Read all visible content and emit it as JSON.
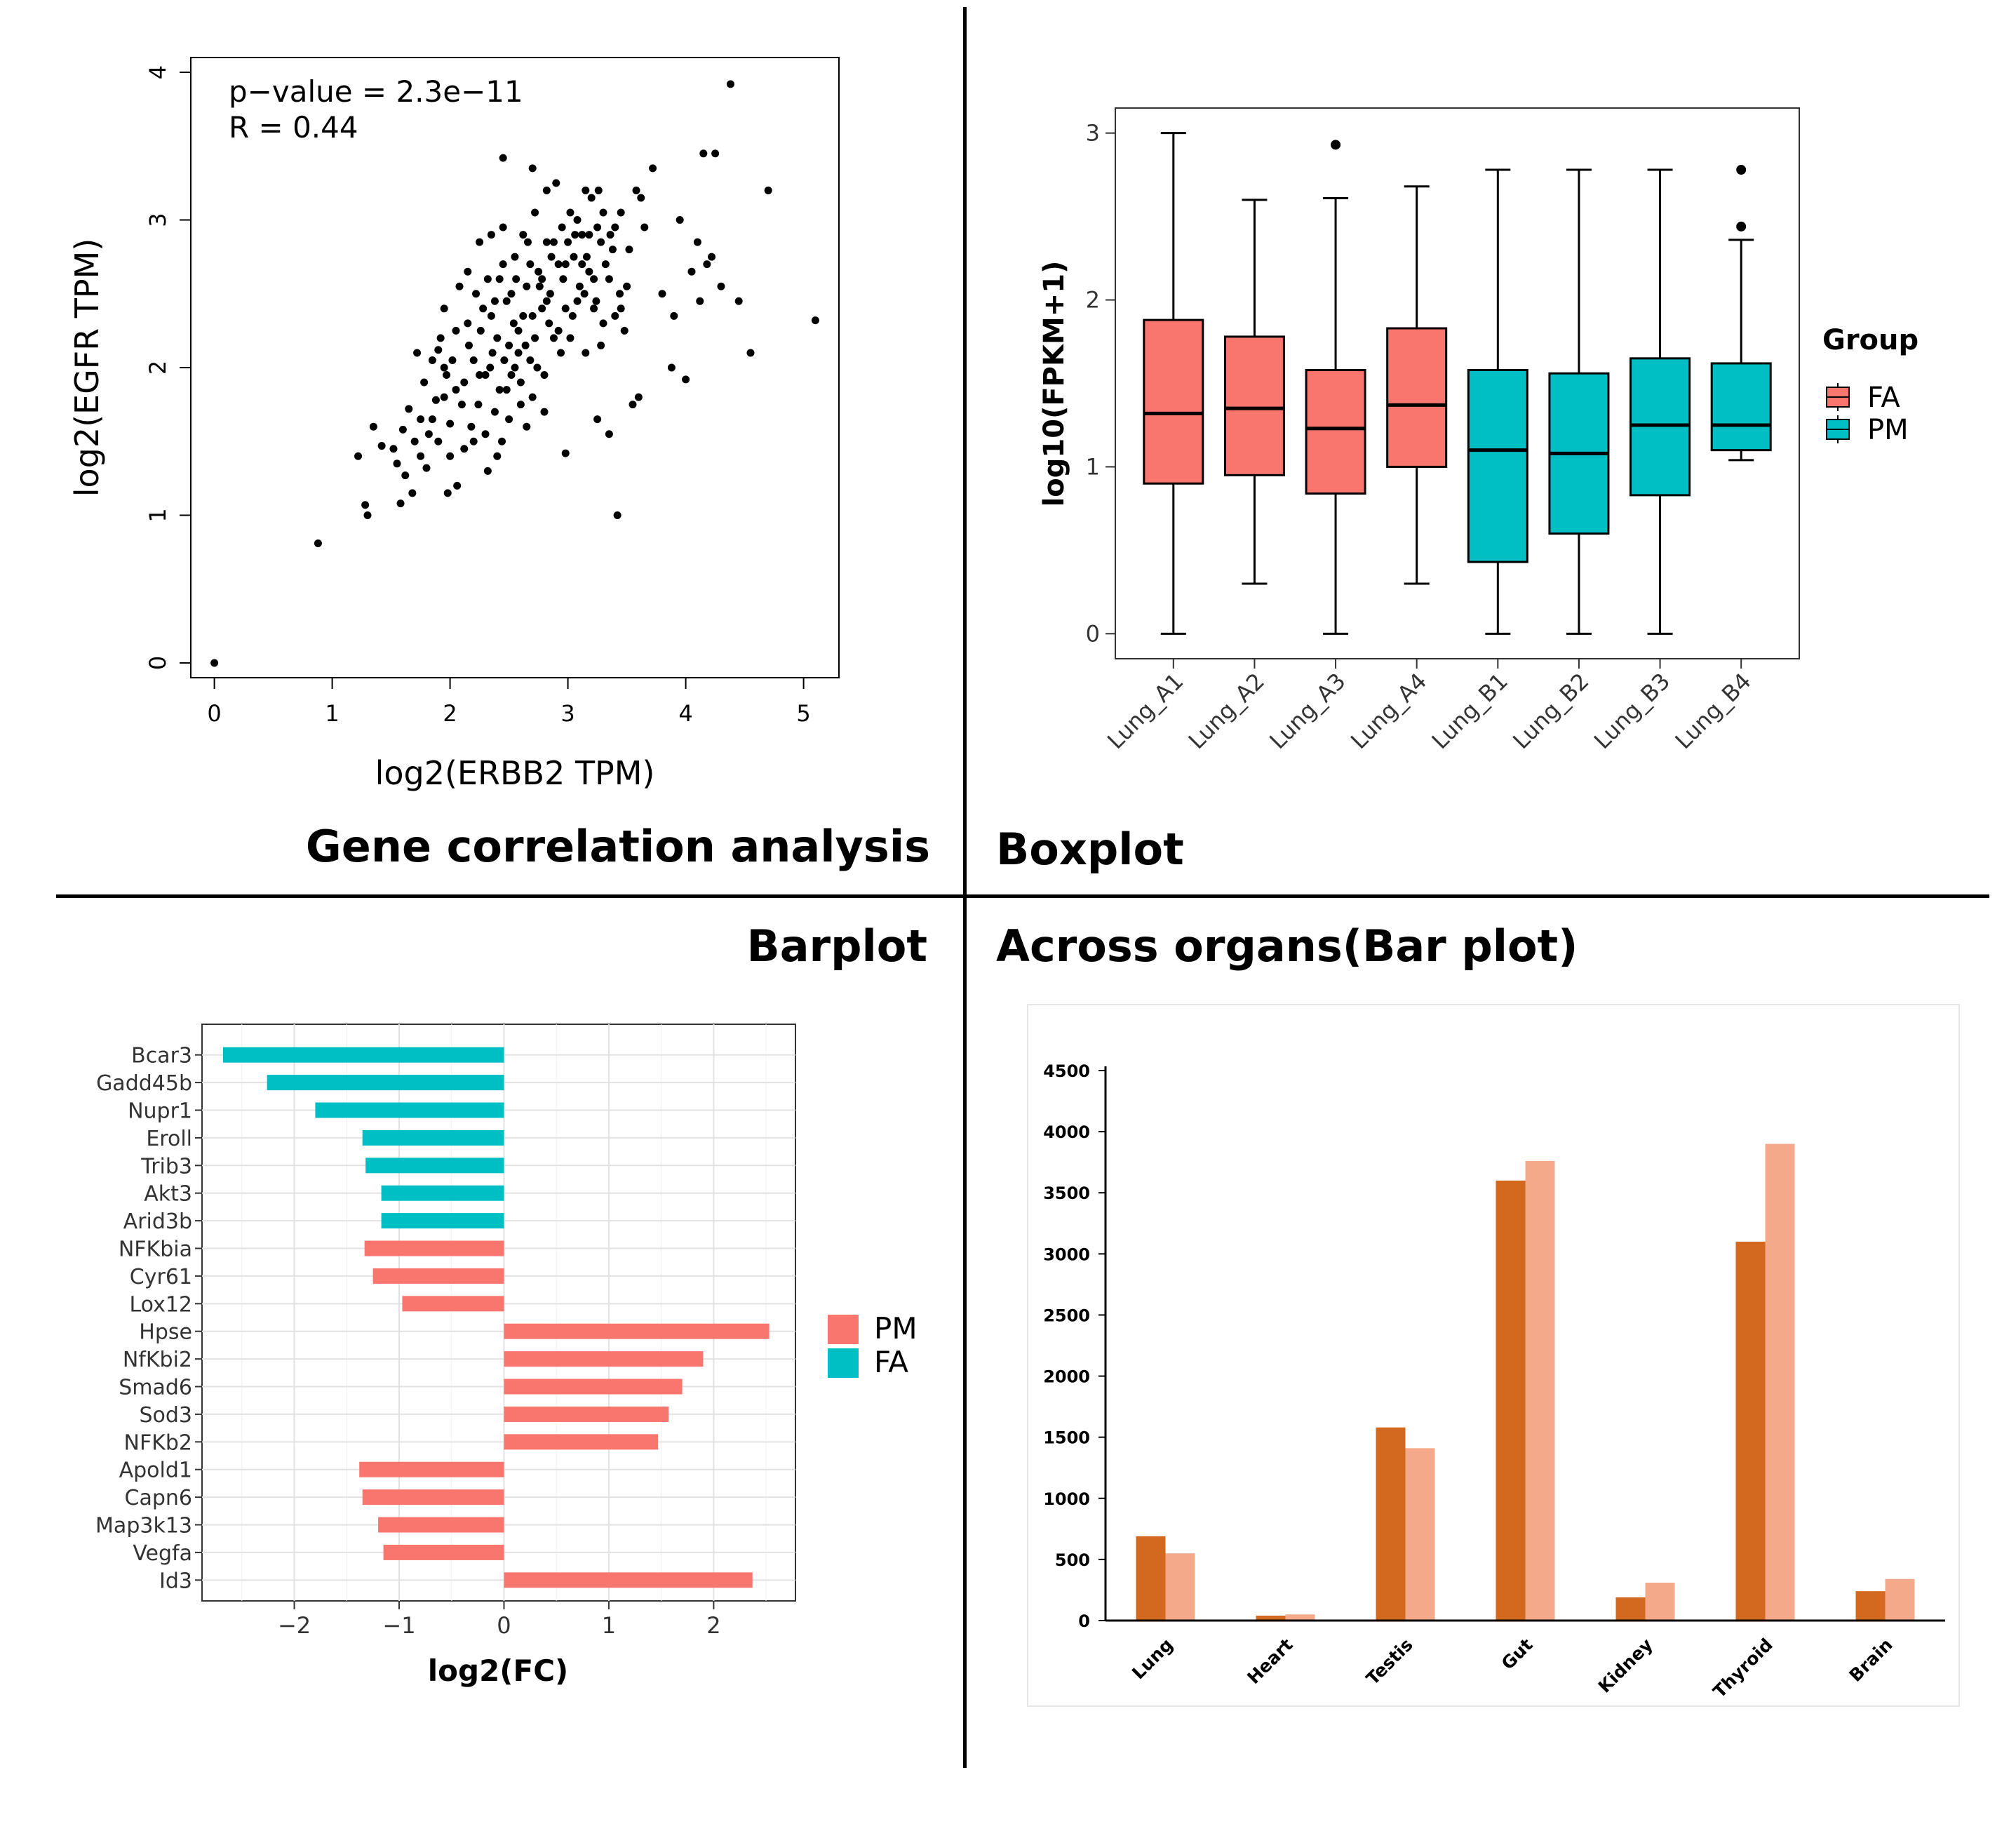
{
  "panel_titles": {
    "correlation": "Gene correlation analysis",
    "boxplot": "Boxplot",
    "barplot": "Barplot",
    "organs": "Across organs(Bar plot)"
  },
  "chart_data": [
    {
      "type": "scatter",
      "xlabel": "log2(ERBB2 TPM)",
      "ylabel": "log2(EGFR TPM)",
      "xlim": [
        -0.2,
        5.3
      ],
      "ylim": [
        -0.1,
        4.1
      ],
      "xticks": [
        "0",
        "1",
        "2",
        "3",
        "4",
        "5"
      ],
      "yticks": [
        "0",
        "1",
        "2",
        "3",
        "4"
      ],
      "annotations": [
        "p−value = 2.3e−11",
        "R = 0.44"
      ],
      "grid": false,
      "points": [
        [
          0.0,
          0.0
        ],
        [
          0.88,
          0.81
        ],
        [
          1.28,
          1.07
        ],
        [
          1.3,
          1.0
        ],
        [
          1.22,
          1.4
        ],
        [
          1.42,
          1.47
        ],
        [
          1.35,
          1.6
        ],
        [
          1.58,
          1.08
        ],
        [
          1.52,
          1.45
        ],
        [
          1.68,
          1.15
        ],
        [
          1.62,
          1.27
        ],
        [
          1.6,
          1.58
        ],
        [
          1.7,
          1.5
        ],
        [
          1.75,
          1.65
        ],
        [
          1.65,
          1.72
        ],
        [
          1.78,
          1.9
        ],
        [
          1.82,
          1.55
        ],
        [
          1.88,
          1.78
        ],
        [
          1.72,
          2.1
        ],
        [
          1.92,
          2.2
        ],
        [
          1.97,
          1.95
        ],
        [
          2.05,
          1.85
        ],
        [
          1.85,
          2.05
        ],
        [
          1.95,
          2.4
        ],
        [
          2.0,
          1.62
        ],
        [
          2.1,
          1.75
        ],
        [
          2.12,
          1.45
        ],
        [
          2.06,
          1.2
        ],
        [
          1.98,
          1.15
        ],
        [
          2.15,
          2.3
        ],
        [
          2.2,
          2.05
        ],
        [
          2.22,
          2.5
        ],
        [
          2.25,
          1.95
        ],
        [
          2.3,
          1.55
        ],
        [
          2.32,
          2.6
        ],
        [
          2.35,
          2.35
        ],
        [
          2.38,
          1.7
        ],
        [
          2.4,
          2.2
        ],
        [
          2.42,
          1.85
        ],
        [
          2.45,
          2.7
        ],
        [
          2.48,
          2.45
        ],
        [
          2.5,
          2.15
        ],
        [
          2.52,
          1.95
        ],
        [
          2.55,
          2.75
        ],
        [
          2.58,
          2.25
        ],
        [
          2.6,
          1.75
        ],
        [
          2.62,
          2.9
        ],
        [
          2.65,
          2.55
        ],
        [
          2.68,
          2.05
        ],
        [
          2.7,
          2.35
        ],
        [
          2.72,
          3.05
        ],
        [
          2.75,
          2.65
        ],
        [
          2.78,
          2.4
        ],
        [
          2.8,
          1.95
        ],
        [
          2.82,
          2.85
        ],
        [
          2.85,
          2.5
        ],
        [
          2.88,
          2.2
        ],
        [
          2.9,
          3.25
        ],
        [
          2.92,
          2.7
        ],
        [
          2.95,
          2.95
        ],
        [
          2.98,
          2.4
        ],
        [
          3.0,
          2.85
        ],
        [
          3.02,
          2.2
        ],
        [
          3.05,
          2.75
        ],
        [
          3.08,
          3.0
        ],
        [
          3.1,
          2.55
        ],
        [
          3.12,
          2.9
        ],
        [
          3.15,
          3.2
        ],
        [
          3.18,
          2.65
        ],
        [
          3.2,
          3.15
        ],
        [
          3.22,
          2.4
        ],
        [
          3.25,
          2.95
        ],
        [
          3.28,
          2.15
        ],
        [
          3.3,
          3.05
        ],
        [
          3.35,
          2.6
        ],
        [
          3.38,
          2.8
        ],
        [
          3.4,
          2.35
        ],
        [
          3.45,
          3.05
        ],
        [
          3.5,
          2.55
        ],
        [
          3.55,
          1.75
        ],
        [
          3.62,
          3.15
        ],
        [
          3.72,
          3.35
        ],
        [
          3.8,
          2.5
        ],
        [
          3.25,
          1.65
        ],
        [
          3.35,
          1.55
        ],
        [
          3.42,
          1.0
        ],
        [
          2.7,
          3.35
        ],
        [
          2.82,
          3.2
        ],
        [
          2.45,
          3.42
        ],
        [
          2.32,
          1.3
        ],
        [
          2.98,
          1.42
        ],
        [
          3.15,
          2.1
        ],
        [
          3.6,
          1.8
        ],
        [
          3.9,
          2.35
        ],
        [
          3.95,
          3.0
        ],
        [
          4.0,
          1.92
        ],
        [
          4.05,
          2.65
        ],
        [
          4.1,
          2.85
        ],
        [
          4.12,
          2.45
        ],
        [
          4.15,
          3.45
        ],
        [
          4.22,
          2.75
        ],
        [
          4.25,
          3.45
        ],
        [
          4.3,
          2.55
        ],
        [
          4.38,
          3.92
        ],
        [
          4.45,
          2.45
        ],
        [
          4.55,
          2.1
        ],
        [
          4.7,
          3.2
        ],
        [
          5.1,
          2.32
        ],
        [
          3.88,
          2.0
        ],
        [
          4.18,
          2.7
        ],
        [
          1.55,
          1.35
        ],
        [
          1.8,
          1.32
        ],
        [
          1.9,
          2.12
        ],
        [
          2.08,
          2.55
        ],
        [
          2.18,
          1.6
        ],
        [
          2.28,
          2.4
        ],
        [
          2.36,
          2.1
        ],
        [
          2.44,
          1.5
        ],
        [
          2.46,
          2.05
        ],
        [
          2.54,
          2.3
        ],
        [
          2.56,
          2.6
        ],
        [
          2.64,
          2.15
        ],
        [
          2.66,
          2.85
        ],
        [
          2.74,
          2.0
        ],
        [
          2.76,
          2.55
        ],
        [
          2.84,
          2.3
        ],
        [
          2.86,
          2.75
        ],
        [
          2.94,
          2.1
        ],
        [
          2.96,
          2.6
        ],
        [
          3.04,
          2.35
        ],
        [
          3.06,
          2.9
        ],
        [
          3.14,
          2.5
        ],
        [
          3.16,
          2.75
        ],
        [
          3.24,
          2.45
        ],
        [
          3.26,
          3.2
        ],
        [
          3.32,
          2.7
        ],
        [
          3.36,
          2.9
        ],
        [
          3.44,
          2.5
        ],
        [
          3.48,
          2.25
        ],
        [
          3.52,
          2.8
        ],
        [
          3.58,
          3.2
        ],
        [
          3.65,
          2.95
        ],
        [
          1.75,
          1.4
        ],
        [
          1.85,
          1.65
        ],
        [
          1.95,
          1.8
        ],
        [
          2.02,
          2.05
        ],
        [
          2.12,
          1.9
        ],
        [
          2.16,
          2.15
        ],
        [
          2.24,
          1.75
        ],
        [
          2.26,
          2.25
        ],
        [
          2.34,
          2.0
        ],
        [
          2.38,
          2.45
        ],
        [
          2.42,
          2.6
        ],
        [
          2.48,
          1.85
        ],
        [
          2.52,
          2.5
        ],
        [
          2.58,
          2.1
        ],
        [
          2.62,
          2.35
        ],
        [
          2.68,
          2.7
        ],
        [
          2.72,
          2.2
        ],
        [
          2.78,
          2.6
        ],
        [
          2.82,
          2.45
        ],
        [
          2.88,
          2.85
        ],
        [
          2.92,
          2.25
        ],
        [
          2.98,
          2.7
        ],
        [
          3.02,
          3.05
        ],
        [
          3.08,
          2.45
        ],
        [
          3.12,
          2.7
        ],
        [
          3.18,
          2.9
        ],
        [
          3.22,
          2.6
        ],
        [
          3.28,
          2.85
        ],
        [
          2.6,
          1.9
        ],
        [
          2.5,
          1.65
        ],
        [
          2.4,
          1.4
        ],
        [
          2.2,
          1.5
        ],
        [
          2.3,
          1.95
        ],
        [
          2.0,
          1.4
        ],
        [
          1.9,
          1.5
        ],
        [
          2.7,
          1.8
        ],
        [
          2.8,
          1.7
        ],
        [
          3.3,
          2.3
        ],
        [
          3.4,
          2.95
        ],
        [
          3.45,
          2.4
        ],
        [
          2.15,
          2.65
        ],
        [
          2.05,
          2.25
        ],
        [
          1.95,
          2.0
        ],
        [
          2.25,
          2.85
        ],
        [
          2.35,
          2.9
        ],
        [
          2.45,
          2.95
        ],
        [
          2.55,
          2.0
        ],
        [
          2.65,
          1.6
        ]
      ]
    },
    {
      "type": "box",
      "ylabel": "log10(FPKM+1)",
      "ylim": [
        -0.15,
        3.15
      ],
      "yticks": [
        "0",
        "1",
        "2",
        "3"
      ],
      "categories": [
        "Lung_A1",
        "Lung_A2",
        "Lung_A3",
        "Lung_A4",
        "Lung_B1",
        "Lung_B2",
        "Lung_B3",
        "Lung_B4"
      ],
      "groups": [
        "FA",
        "FA",
        "FA",
        "FA",
        "PM",
        "PM",
        "PM",
        "PM"
      ],
      "boxes": [
        {
          "min": 0.0,
          "q1": 0.9,
          "median": 1.32,
          "q3": 1.88,
          "max": 3.0,
          "outliers": []
        },
        {
          "min": 0.3,
          "q1": 0.95,
          "median": 1.35,
          "q3": 1.78,
          "max": 2.6,
          "outliers": []
        },
        {
          "min": 0.0,
          "q1": 0.84,
          "median": 1.23,
          "q3": 1.58,
          "max": 2.61,
          "outliers": [
            2.93
          ]
        },
        {
          "min": 0.3,
          "q1": 1.0,
          "median": 1.37,
          "q3": 1.83,
          "max": 2.68,
          "outliers": []
        },
        {
          "min": 0.0,
          "q1": 0.43,
          "median": 1.1,
          "q3": 1.58,
          "max": 2.78,
          "outliers": []
        },
        {
          "min": 0.0,
          "q1": 0.6,
          "median": 1.08,
          "q3": 1.56,
          "max": 2.78,
          "outliers": []
        },
        {
          "min": 0.0,
          "q1": 0.83,
          "median": 1.25,
          "q3": 1.65,
          "max": 2.78,
          "outliers": []
        },
        {
          "min": 1.04,
          "q1": 1.1,
          "median": 1.25,
          "q3": 1.62,
          "max": 2.36,
          "outliers": [
            2.44,
            2.78
          ]
        }
      ],
      "legend": {
        "title": "Group",
        "entries": [
          "FA",
          "PM"
        ],
        "position": "right"
      },
      "colors": {
        "FA": "#F8766D",
        "PM": "#00BFC4"
      }
    },
    {
      "type": "bar",
      "orientation": "horizontal",
      "xlabel": "log2(FC)",
      "xlim": [
        -2.88,
        2.78
      ],
      "xticks": [
        "−2",
        "−1",
        "0",
        "1",
        "2"
      ],
      "categories": [
        "Bcar3",
        "Gadd45b",
        "Nupr1",
        "Eroll",
        "Trib3",
        "Akt3",
        "Arid3b",
        "NFKbia",
        "Cyr61",
        "Lox12",
        "Hpse",
        "NfKbi2",
        "Smad6",
        "Sod3",
        "NFKb2",
        "Apold1",
        "Capn6",
        "Map3k13",
        "Vegfa",
        "Id3"
      ],
      "values": [
        -2.68,
        -2.26,
        -1.8,
        -1.35,
        -1.32,
        -1.17,
        -1.17,
        -1.33,
        -1.25,
        -0.97,
        2.53,
        1.9,
        1.7,
        1.57,
        1.47,
        -1.38,
        -1.35,
        -1.2,
        -1.15,
        2.37
      ],
      "groups": [
        "FA",
        "FA",
        "FA",
        "FA",
        "FA",
        "FA",
        "FA",
        "PM",
        "PM",
        "PM",
        "PM",
        "PM",
        "PM",
        "PM",
        "PM",
        "PM",
        "PM",
        "PM",
        "PM",
        "PM"
      ],
      "legend": {
        "entries": [
          "PM",
          "FA"
        ],
        "position": "right"
      },
      "colors": {
        "FA": "#00BFC4",
        "PM": "#F8766D"
      },
      "grid": true
    },
    {
      "type": "bar",
      "orientation": "vertical",
      "ylim": [
        0,
        4500
      ],
      "yticks": [
        "0",
        "500",
        "1000",
        "1500",
        "2000",
        "2500",
        "3000",
        "3500",
        "4000",
        "4500"
      ],
      "categories": [
        "Lung",
        "Heart",
        "Testis",
        "Gut",
        "Kidney",
        "Thyroid",
        "Brain"
      ],
      "series": [
        {
          "values": [
            690,
            40,
            1580,
            3600,
            190,
            3100,
            240
          ],
          "color": "#D2691E"
        },
        {
          "values": [
            550,
            50,
            1410,
            3760,
            310,
            3900,
            340
          ],
          "color": "#F4A98A"
        }
      ]
    }
  ]
}
